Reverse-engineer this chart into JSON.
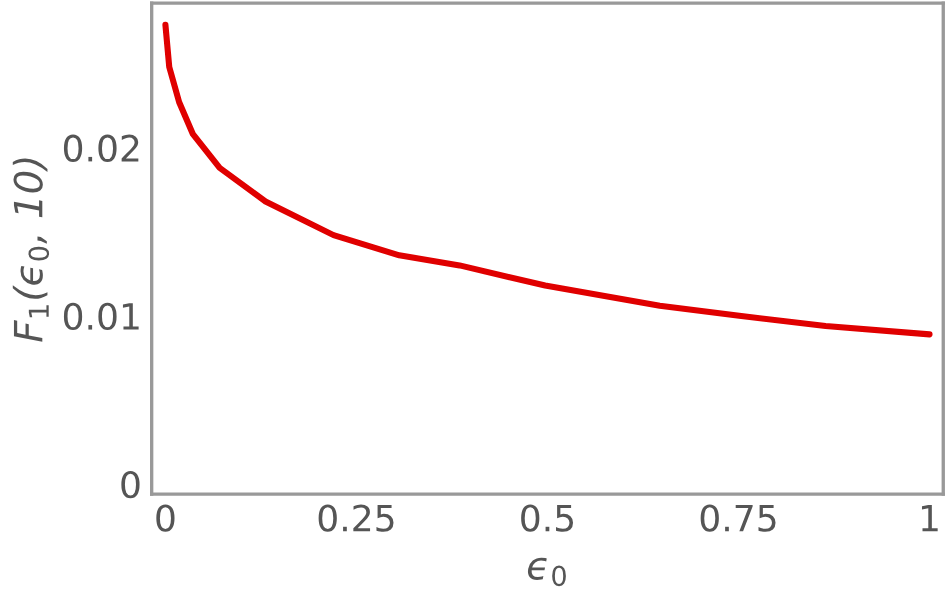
{
  "chart_data": {
    "type": "line",
    "xlabel": "ϵ$_{0}$",
    "ylabel": "F$_{1}$(ϵ$_{0}$, 10)",
    "x": [
      0,
      0.005,
      0.018,
      0.036,
      0.071,
      0.131,
      0.22,
      0.306,
      0.385,
      0.497,
      0.647,
      0.751,
      0.864,
      1
    ],
    "series": [
      {
        "color": "#e00000",
        "values": [
          0.0273,
          0.0248,
          0.0227,
          0.0208,
          0.0188,
          0.0168,
          0.0148,
          0.0136,
          0.013,
          0.0118,
          0.0106,
          0.01,
          0.0094,
          0.0089
        ]
      }
    ],
    "xlim": [
      -0.018,
      1.018
    ],
    "ylim": [
      -0.0006,
      0.0286
    ],
    "xticks": [
      0,
      0.25,
      0.5,
      0.75,
      1
    ],
    "yticks": [
      0,
      0.01,
      0.02
    ],
    "grid": false
  }
}
